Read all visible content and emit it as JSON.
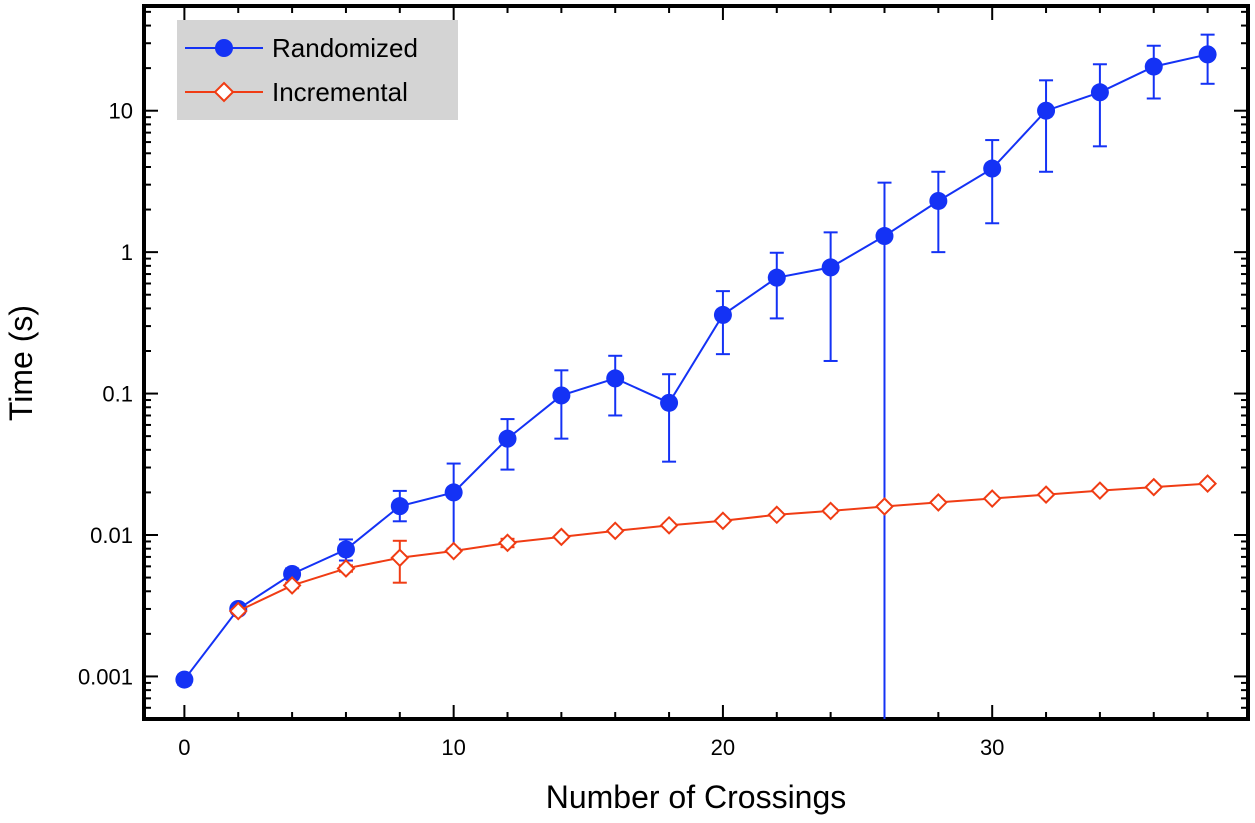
{
  "chart_data": {
    "type": "line",
    "title": "",
    "xlabel": "Number of Crossings",
    "ylabel": "Time (s)",
    "xlim": [
      -1.5,
      39.5
    ],
    "ylim": [
      0.0005,
      55
    ],
    "yscale": "log",
    "x_ticks": [
      0,
      10,
      20,
      30
    ],
    "x_tick_labels": [
      "0",
      "10",
      "20",
      "30"
    ],
    "y_ticks": [
      0.001,
      0.01,
      0.1,
      1,
      10
    ],
    "y_tick_labels": [
      "0.001",
      "0.01",
      "0.1",
      "1",
      "10"
    ],
    "grid": false,
    "legend_position": "top-left",
    "series": [
      {
        "name": "Randomized",
        "color": "#1432f5",
        "marker": "filled-circle",
        "x": [
          0,
          2,
          4,
          6,
          8,
          10,
          12,
          14,
          16,
          18,
          20,
          22,
          24,
          26,
          28,
          30,
          32,
          34,
          36,
          38
        ],
        "y": [
          0.00095,
          0.003,
          0.0053,
          0.0079,
          0.016,
          0.02,
          0.048,
          0.097,
          0.128,
          0.086,
          0.36,
          0.66,
          0.78,
          1.3,
          2.3,
          3.9,
          10.0,
          13.5,
          20.5,
          25.0
        ],
        "err_low": [
          0.00087,
          0.0028,
          0.0049,
          0.0066,
          0.0125,
          0.008,
          0.029,
          0.048,
          0.07,
          0.033,
          0.19,
          0.34,
          0.17,
          0.0005,
          1.0,
          1.6,
          3.7,
          5.6,
          12.2,
          15.5
        ],
        "err_high": [
          0.00103,
          0.0032,
          0.0058,
          0.0093,
          0.0205,
          0.032,
          0.066,
          0.146,
          0.185,
          0.137,
          0.53,
          0.99,
          1.38,
          3.1,
          3.7,
          6.2,
          16.4,
          21.3,
          28.8,
          34.5
        ]
      },
      {
        "name": "Incremental",
        "color": "#f03c14",
        "marker": "open-diamond",
        "x": [
          2,
          4,
          6,
          8,
          10,
          12,
          14,
          16,
          18,
          20,
          22,
          24,
          26,
          28,
          30,
          32,
          34,
          36,
          38
        ],
        "y": [
          0.0029,
          0.0044,
          0.0058,
          0.0069,
          0.0077,
          0.0088,
          0.0097,
          0.0107,
          0.0117,
          0.0126,
          0.0139,
          0.0148,
          0.0159,
          0.017,
          0.0181,
          0.0193,
          0.0206,
          0.0218,
          0.0231
        ],
        "err_low": [
          0.0028,
          0.0042,
          0.0055,
          0.0046,
          0.0075,
          0.0082,
          0.0095,
          0.0105,
          0.0114,
          0.0123,
          0.0136,
          0.0143,
          0.0156,
          0.0166,
          0.0177,
          0.0189,
          0.0202,
          0.0213,
          0.0226
        ],
        "err_high": [
          0.003,
          0.0046,
          0.0061,
          0.0091,
          0.0079,
          0.0094,
          0.0099,
          0.0109,
          0.012,
          0.0129,
          0.0142,
          0.0153,
          0.0162,
          0.0174,
          0.0185,
          0.0197,
          0.021,
          0.0223,
          0.0236
        ]
      }
    ]
  }
}
